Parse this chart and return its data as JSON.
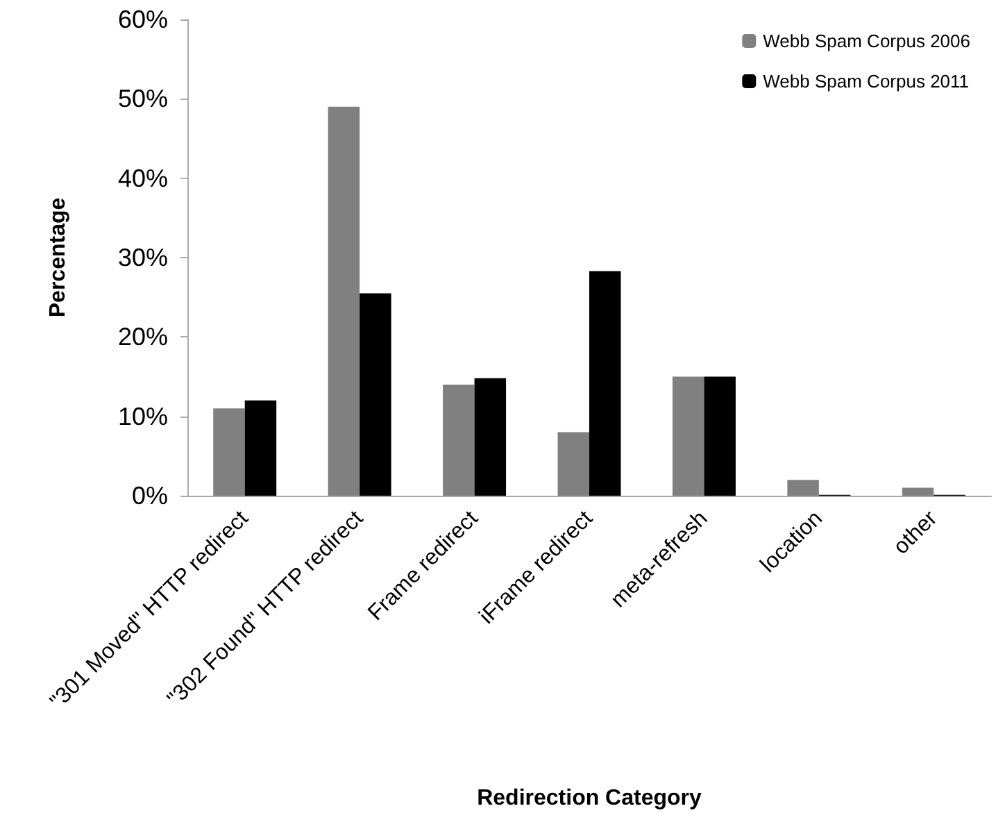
{
  "chart_data": {
    "type": "bar",
    "xlabel": "Redirection Category",
    "ylabel": "Percentage",
    "categories": [
      "\"301 Moved\" HTTP redirect",
      "\"302 Found\" HTTP redirect",
      "Frame redirect",
      "iFrame redirect",
      "meta-refresh",
      "location",
      "other"
    ],
    "series": [
      {
        "name": "Webb Spam Corpus 2006",
        "color": "#808080",
        "values": [
          11,
          49,
          14,
          8,
          15,
          2,
          1
        ]
      },
      {
        "name": "Webb Spam Corpus 2011",
        "color": "#000000",
        "values": [
          12,
          25.5,
          14.8,
          28.3,
          15,
          0.1,
          0.1
        ]
      }
    ],
    "ylim": [
      0,
      60
    ],
    "yticks": [
      {
        "value": 0,
        "label": "0%"
      },
      {
        "value": 10,
        "label": "10%"
      },
      {
        "value": 20,
        "label": "20%"
      },
      {
        "value": 30,
        "label": "30%"
      },
      {
        "value": 40,
        "label": "40%"
      },
      {
        "value": 50,
        "label": "50%"
      },
      {
        "value": 60,
        "label": "60%"
      }
    ],
    "grid": false,
    "legend": "top right"
  }
}
